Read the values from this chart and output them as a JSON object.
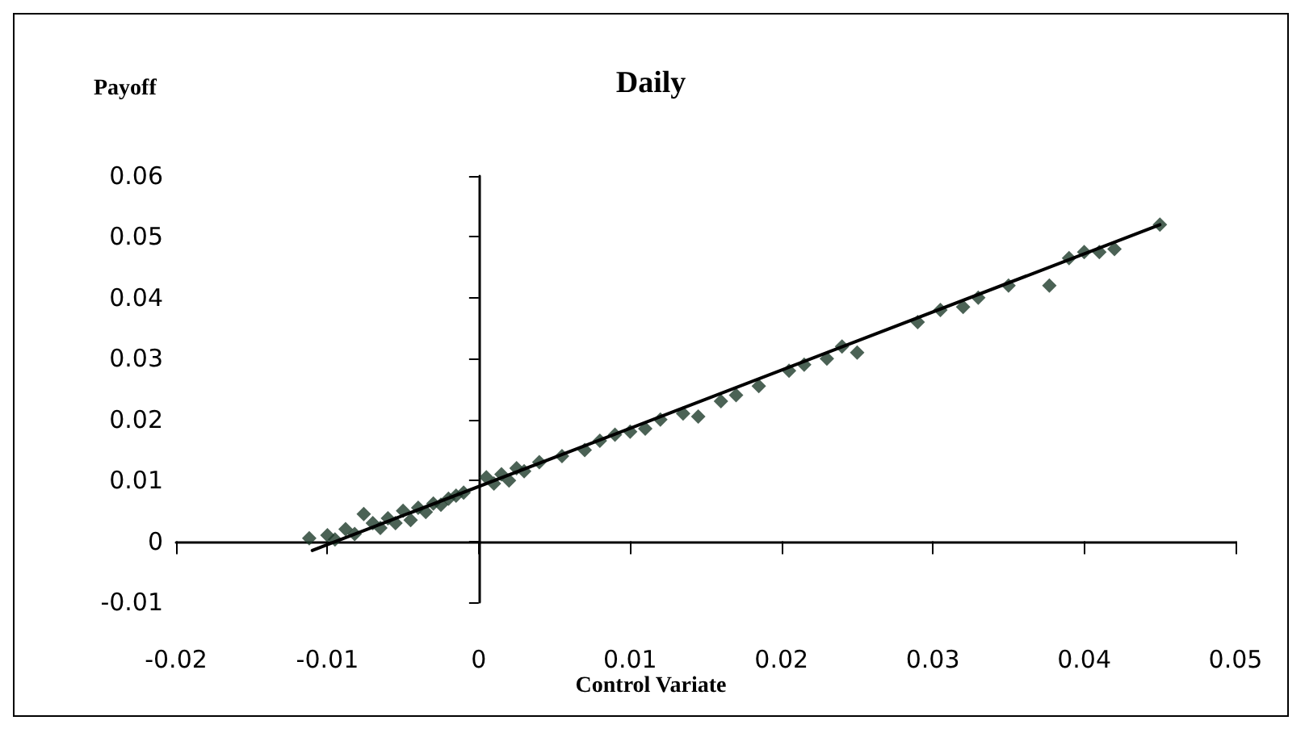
{
  "chart_data": {
    "type": "scatter",
    "title": "Daily",
    "ylabel": "Payoff",
    "xlabel": "Control Variate",
    "xlim": [
      -0.02,
      0.05
    ],
    "xticks": [
      -0.02,
      -0.01,
      0,
      0.01,
      0.02,
      0.03,
      0.04,
      0.05
    ],
    "ylim": [
      -0.01,
      0.06
    ],
    "yticks": [
      -0.01,
      0,
      0.01,
      0.02,
      0.03,
      0.04,
      0.05,
      0.06
    ],
    "marker": "diamond",
    "series": [
      {
        "color": "#1e3b2b",
        "x": [
          -0.0112,
          -0.01,
          -0.0095,
          -0.0088,
          -0.0082,
          -0.0076,
          -0.007,
          -0.0065,
          -0.006,
          -0.0055,
          -0.005,
          -0.0045,
          -0.004,
          -0.0035,
          -0.003,
          -0.0025,
          -0.002,
          -0.0015,
          -0.001,
          0.0005,
          0.001,
          0.0015,
          0.002,
          0.0025,
          0.003,
          0.004,
          0.0055,
          0.007,
          0.008,
          0.009,
          0.01,
          0.011,
          0.012,
          0.0135,
          0.0145,
          0.016,
          0.017,
          0.0185,
          0.0205,
          0.0215,
          0.023,
          0.024,
          0.025,
          0.029,
          0.0305,
          0.032,
          0.033,
          0.035,
          0.0377,
          0.039,
          0.04,
          0.041,
          0.042,
          0.045
        ],
        "values": [
          0.0005,
          0.001,
          0.0003,
          0.002,
          0.0012,
          0.0045,
          0.003,
          0.0022,
          0.0038,
          0.003,
          0.005,
          0.0035,
          0.0055,
          0.0048,
          0.0062,
          0.006,
          0.007,
          0.0075,
          0.008,
          0.0105,
          0.0095,
          0.011,
          0.01,
          0.012,
          0.0115,
          0.013,
          0.014,
          0.015,
          0.0165,
          0.0175,
          0.018,
          0.0185,
          0.02,
          0.021,
          0.0205,
          0.023,
          0.024,
          0.0255,
          0.028,
          0.029,
          0.03,
          0.032,
          0.031,
          0.036,
          0.038,
          0.0385,
          0.04,
          0.042,
          0.042,
          0.0465,
          0.0475,
          0.0475,
          0.048,
          0.052
        ]
      },
      {
        "type": "line",
        "color": "#000000",
        "marker": "none",
        "line_style": "solid",
        "x": [
          -0.011,
          0.045
        ],
        "values": [
          -0.0015,
          0.052
        ]
      }
    ]
  }
}
